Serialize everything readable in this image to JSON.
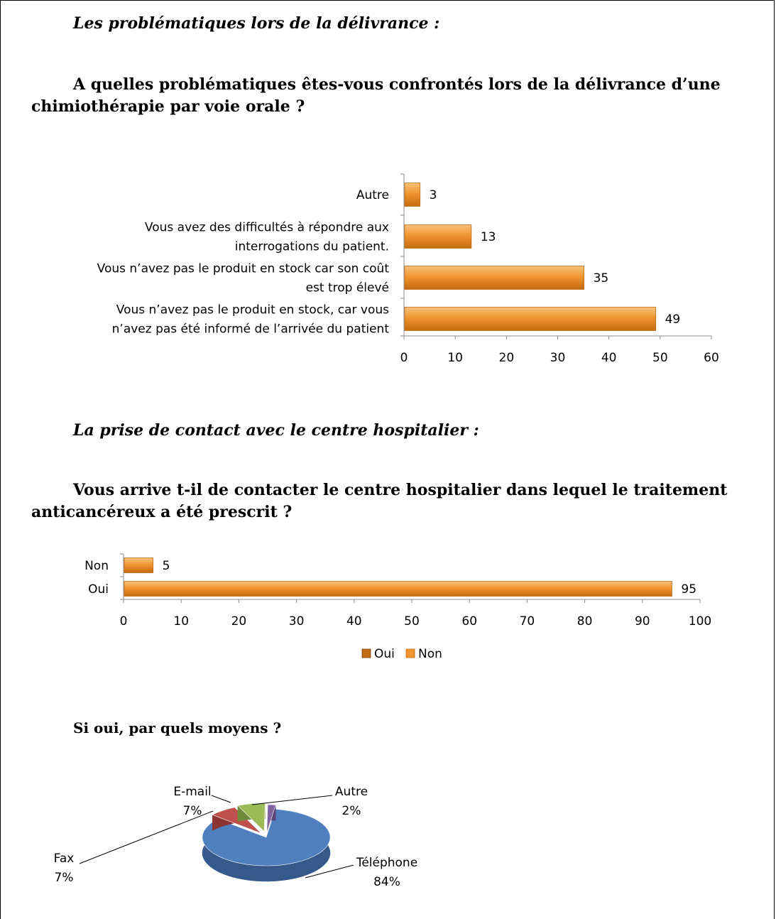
{
  "section1": {
    "heading": "Les problématiques lors de la délivrance :",
    "question_line1": "A quelles problématiques êtes-vous confrontés lors de la délivrance d’une",
    "question_line2": "chimiothérapie par voie orale ?"
  },
  "section2": {
    "heading": "La prise de contact avec le centre hospitalier :",
    "question_line1": "Vous arrive t-il de contacter le centre hospitalier dans lequel le traitement",
    "question_line2": "anticancéreux a été prescrit ?"
  },
  "section3": {
    "heading": "Si oui, par quels moyens ?"
  },
  "colors": {
    "bar": "#f0952f",
    "bar_light": "#f8c27e",
    "bar_dark": "#c46a10",
    "telephone": "#4f7fbf",
    "fax": "#c0504d",
    "email": "#9bbb59",
    "autre": "#8064a2"
  },
  "chart_data": [
    {
      "type": "bar",
      "orientation": "horizontal",
      "categories": [
        [
          "Vous n’avez pas le produit en stock, car vous",
          "n’avez pas été informé de l’arrivée du patient"
        ],
        [
          "Vous n’avez pas le produit en stock car son coût",
          "est trop élevé"
        ],
        [
          "Vous avez des difficultés à répondre aux",
          "interrogations du patient."
        ],
        [
          "Autre"
        ]
      ],
      "values": [
        49,
        35,
        13,
        3
      ],
      "xlim": [
        0,
        60
      ],
      "ticks": [
        0,
        10,
        20,
        30,
        40,
        50,
        60
      ],
      "tick_labels": [
        "0",
        "10",
        "20",
        "30",
        "40",
        "50",
        "60"
      ],
      "data_labels": [
        "49",
        "35",
        "13",
        "3"
      ],
      "grid": false
    },
    {
      "type": "bar",
      "orientation": "horizontal",
      "categories": [
        "Oui",
        "Non"
      ],
      "values": [
        95,
        5
      ],
      "xlim": [
        0,
        100
      ],
      "ticks": [
        0,
        10,
        20,
        30,
        40,
        50,
        60,
        70,
        80,
        90,
        100
      ],
      "tick_labels": [
        "0",
        "10",
        "20",
        "30",
        "40",
        "50",
        "60",
        "70",
        "80",
        "90",
        "100"
      ],
      "data_labels": [
        "95",
        "5"
      ],
      "legend": [
        "Oui",
        "Non"
      ],
      "legend_position": "bottom",
      "grid": false
    },
    {
      "type": "pie",
      "categories": [
        "Téléphone",
        "Fax",
        "E-mail",
        "Autre"
      ],
      "values": [
        84,
        7,
        7,
        2
      ],
      "labels": [
        "84%",
        "7%",
        "7%",
        "2%"
      ]
    }
  ]
}
